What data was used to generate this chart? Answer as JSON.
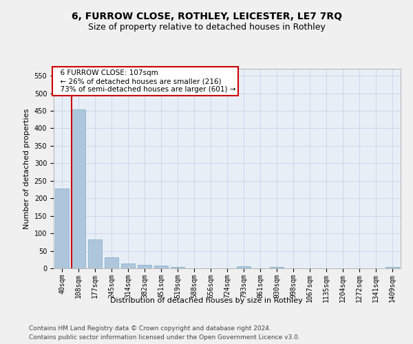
{
  "title": "6, FURROW CLOSE, ROTHLEY, LEICESTER, LE7 7RQ",
  "subtitle": "Size of property relative to detached houses in Rothley",
  "xlabel": "Distribution of detached houses by size in Rothley",
  "ylabel": "Number of detached properties",
  "footer_line1": "Contains HM Land Registry data © Crown copyright and database right 2024.",
  "footer_line2": "Contains public sector information licensed under the Open Government Licence v3.0.",
  "categories": [
    "40sqm",
    "108sqm",
    "177sqm",
    "245sqm",
    "314sqm",
    "382sqm",
    "451sqm",
    "519sqm",
    "588sqm",
    "656sqm",
    "724sqm",
    "793sqm",
    "861sqm",
    "930sqm",
    "998sqm",
    "1067sqm",
    "1135sqm",
    "1204sqm",
    "1272sqm",
    "1341sqm",
    "1409sqm"
  ],
  "values": [
    228,
    454,
    83,
    31,
    13,
    10,
    7,
    4,
    0,
    0,
    0,
    5,
    0,
    4,
    0,
    0,
    0,
    0,
    0,
    0,
    4
  ],
  "bar_color": "#aec6dc",
  "bar_edge_color": "#7aaac8",
  "red_line_color": "#cc0000",
  "annotation_text_line1": "6 FURROW CLOSE: 107sqm",
  "annotation_text_line2": "← 26% of detached houses are smaller (216)",
  "annotation_text_line3": "73% of semi-detached houses are larger (601) →",
  "annotation_box_color": "#ffffff",
  "annotation_border_color": "#cc0000",
  "ylim": [
    0,
    570
  ],
  "yticks": [
    0,
    50,
    100,
    150,
    200,
    250,
    300,
    350,
    400,
    450,
    500,
    550
  ],
  "grid_color": "#c8d4e4",
  "bg_color": "#e8eef6",
  "fig_bg_color": "#f0f0f0",
  "title_fontsize": 10,
  "subtitle_fontsize": 9,
  "axis_label_fontsize": 8,
  "tick_fontsize": 7,
  "annotation_fontsize": 7.5,
  "footer_fontsize": 6.5
}
